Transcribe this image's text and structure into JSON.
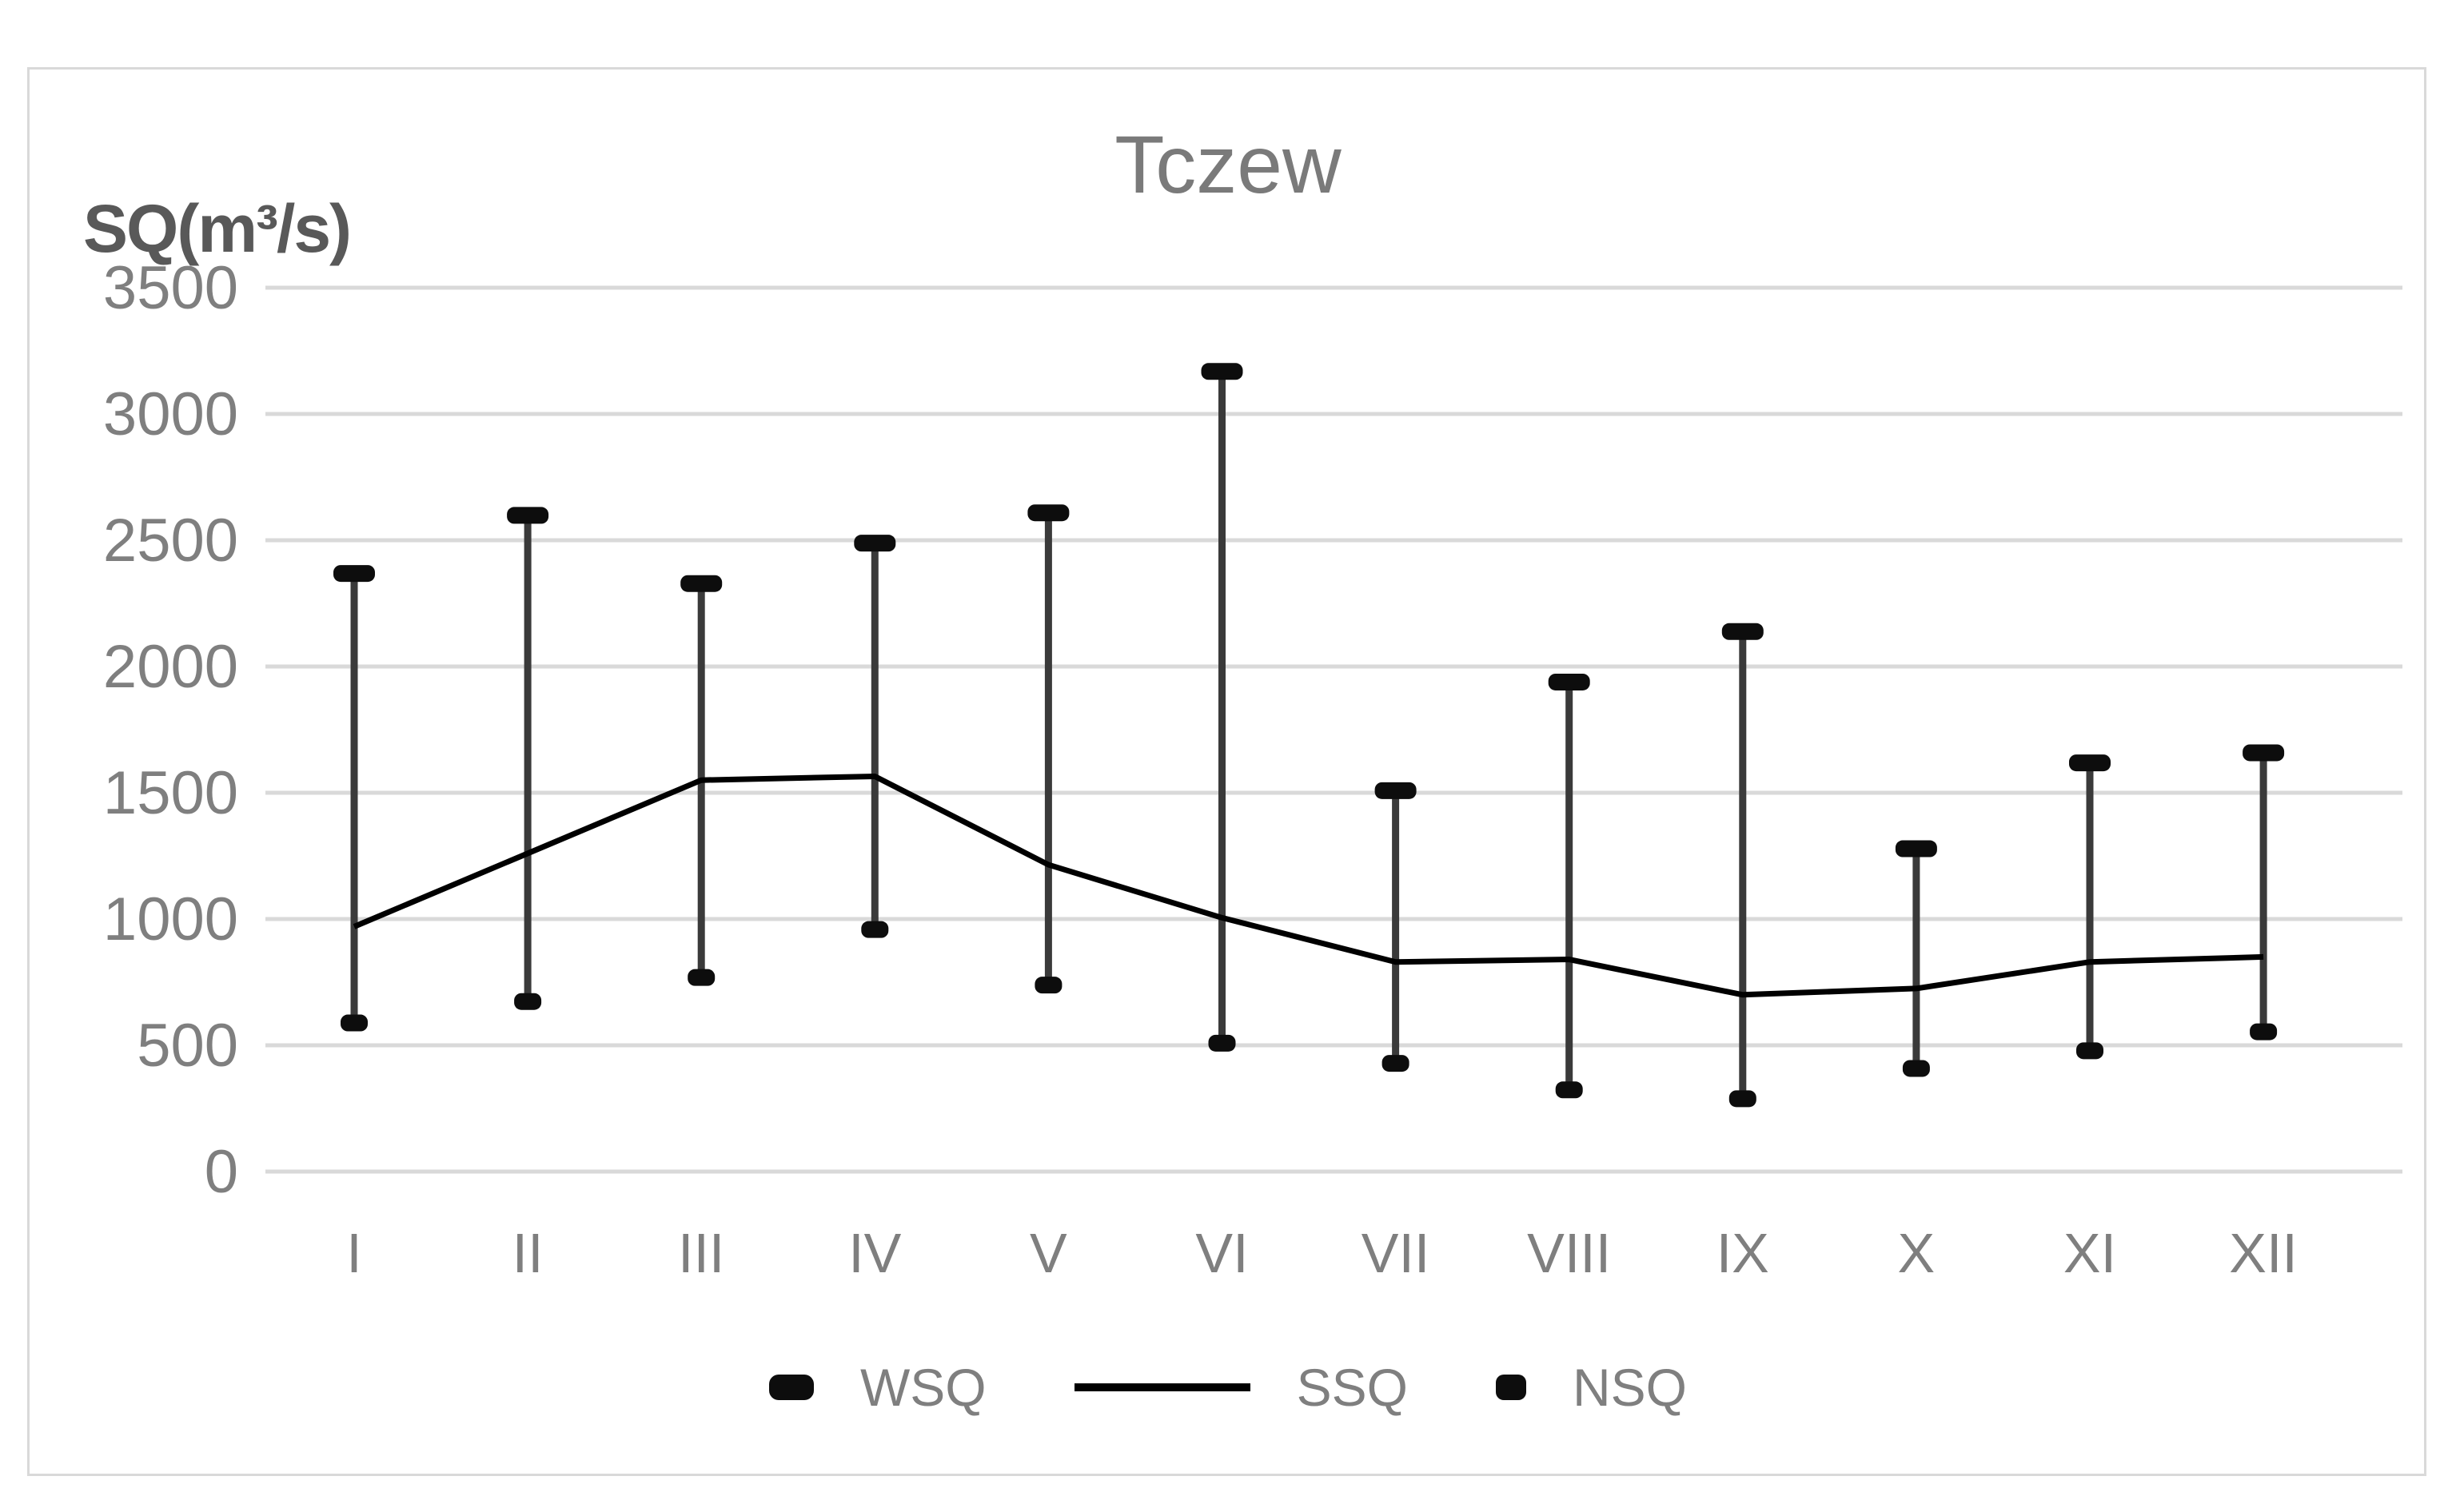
{
  "y_axis_label": "SQ(m³/s)",
  "colors": {
    "gridline": "#d9d9d9",
    "frame_border": "#d9d9d9",
    "axis_text": "#7f7f7f",
    "title_text": "#7a7a7a",
    "y_axis_title_text": "#595959",
    "hilo_bar": "#3a3a3a",
    "marker": "#0d0d0d",
    "ssq_line": "#000000",
    "background": "#ffffff"
  },
  "chart_data": {
    "type": "line",
    "title": "Tczew",
    "ylabel": "SQ(m³/s)",
    "xlabel": "",
    "categories": [
      "I",
      "II",
      "III",
      "IV",
      "V",
      "VI",
      "VII",
      "VIII",
      "IX",
      "X",
      "XI",
      "XII"
    ],
    "series": [
      {
        "name": "WSQ",
        "role": "high",
        "marker": "dash",
        "values": [
          2370,
          2600,
          2330,
          2490,
          2610,
          3170,
          1510,
          1940,
          2140,
          1280,
          1620,
          1660
        ]
      },
      {
        "name": "SSQ",
        "role": "mean-line",
        "marker": "none",
        "values": [
          970,
          1260,
          1550,
          1565,
          1215,
          1005,
          830,
          840,
          700,
          725,
          830,
          850
        ]
      },
      {
        "name": "NSQ",
        "role": "low",
        "marker": "dash",
        "values": [
          590,
          675,
          770,
          960,
          740,
          510,
          430,
          325,
          290,
          410,
          480,
          555
        ]
      }
    ],
    "ylim": [
      0,
      3500
    ],
    "yticks": [
      0,
      500,
      1000,
      1500,
      2000,
      2500,
      3000,
      3500
    ],
    "grid": true,
    "legend_position": "bottom"
  },
  "legend": {
    "items": [
      {
        "label": "WSQ"
      },
      {
        "label": "SSQ"
      },
      {
        "label": "NSQ"
      }
    ]
  }
}
